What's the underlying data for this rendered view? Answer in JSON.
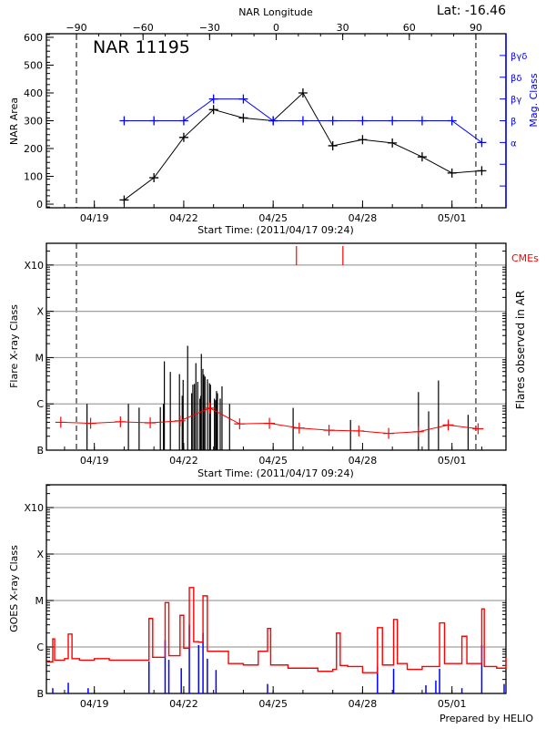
{
  "chart_data": [
    {
      "type": "line",
      "title": "NAR 11195",
      "annotation": "Lat: -16.46",
      "xlabel": "Start Time: (2011/04/17 09:24)",
      "ylabel": "NAR Area",
      "y2label": "Mag. Class",
      "top_axis_label": "NAR Longitude",
      "xlim": [
        "2011-04-17 09:24",
        "2011-05-02 19:30"
      ],
      "ylim": [
        -13,
        613
      ],
      "yticks": [
        0,
        100,
        200,
        300,
        400,
        500,
        600
      ],
      "xtick_labels": [
        "04/19",
        "04/22",
        "04/25",
        "04/28",
        "05/01"
      ],
      "xtick_dates": [
        "2011-04-19 00:00",
        "2011-04-22 00:00",
        "2011-04-25 00:00",
        "2011-04-28 00:00",
        "2011-05-01 00:00"
      ],
      "top_ticks": [
        -90,
        -60,
        -30,
        0,
        30,
        60,
        90
      ],
      "longitude_minus90_date": "2011-04-18 09:36",
      "longitude_plus90_date": "2011-05-01 19:15",
      "mag_class_levels": [
        "α",
        "β",
        "βγ",
        "βδ",
        "βγδ"
      ],
      "mag_class_level_index": [
        3,
        4,
        5,
        6,
        7
      ],
      "mag_axis_range": [
        0,
        8
      ],
      "colors": {
        "area": "#000000",
        "mag": "#0000ff"
      },
      "series": [
        {
          "name": "NAR Area",
          "x": [
            "2011-04-20 00:00",
            "2011-04-21 00:00",
            "2011-04-22 00:00",
            "2011-04-23 00:00",
            "2011-04-24 00:00",
            "2011-04-25 00:00",
            "2011-04-26 00:00",
            "2011-04-27 00:00",
            "2011-04-28 00:00",
            "2011-04-29 00:00",
            "2011-04-30 00:00",
            "2011-05-01 00:00",
            "2011-05-02 00:00"
          ],
          "values": [
            15,
            95,
            240,
            340,
            310,
            300,
            400,
            210,
            232,
            220,
            170,
            112,
            120
          ]
        },
        {
          "name": "Mag. Class",
          "x": [
            "2011-04-20 00:00",
            "2011-04-21 00:00",
            "2011-04-22 00:00",
            "2011-04-23 00:00",
            "2011-04-24 00:00",
            "2011-04-25 00:00",
            "2011-04-26 00:00",
            "2011-04-27 00:00",
            "2011-04-28 00:00",
            "2011-04-29 00:00",
            "2011-04-30 00:00",
            "2011-05-01 00:00",
            "2011-05-02 00:00"
          ],
          "values": [
            "β",
            "β",
            "β",
            "βγ",
            "βγ",
            "β",
            "β",
            "β",
            "β",
            "β",
            "β",
            "β",
            "α"
          ]
        }
      ]
    },
    {
      "type": "bar",
      "xlabel": "Start Time: (2011/04/17 09:24)",
      "ylabel": "Flare X-ray Class",
      "y2label": "Flares observed in AR",
      "cme_label": "CMEs",
      "yscale": "log",
      "ylim": [
        1e-07,
        0.00295
      ],
      "ytick_labels": [
        "B",
        "C",
        "M",
        "X",
        "X10"
      ],
      "ytick_values": [
        1e-07,
        1e-06,
        1e-05,
        0.0001,
        0.001
      ],
      "grid": true,
      "xtick_labels": [
        "04/19",
        "04/22",
        "04/25",
        "04/28",
        "05/01"
      ],
      "colors": {
        "flares": "#000000",
        "trend": "#ff0000",
        "cme": "#ff0000",
        "grid": "#a0a0a0"
      },
      "cme_times": [
        "2011-04-25 18:45",
        "2011-04-27 08:10"
      ],
      "flares": {
        "x": [
          "2011-04-18 18:06",
          "2011-04-20 03:26",
          "2011-04-20 12:03",
          "2011-04-21 05:09",
          "2011-04-21 07:38",
          "2011-04-21 08:22",
          "2011-04-21 13:12",
          "2011-04-21 20:33",
          "2011-04-21 22:45",
          "2011-04-21 23:30",
          "2011-04-22 03:09",
          "2011-04-22 06:23",
          "2011-04-22 07:20",
          "2011-04-22 08:35",
          "2011-04-22 09:46",
          "2011-04-22 11:14",
          "2011-04-22 12:59",
          "2011-04-22 13:44",
          "2011-04-22 14:10",
          "2011-04-22 15:25",
          "2011-04-22 16:09",
          "2011-04-22 17:06",
          "2011-04-22 19:05",
          "2011-04-22 20:46",
          "2011-04-22 21:30",
          "2011-04-23 00:44",
          "2011-04-23 01:41",
          "2011-04-23 02:25",
          "2011-04-23 03:09",
          "2011-04-23 05:21",
          "2011-04-23 06:49",
          "2011-04-23 12:55",
          "2011-04-25 16:05",
          "2011-04-27 14:18",
          "2011-04-29 21:00",
          "2011-04-30 05:13",
          "2011-04-30 13:08",
          "2011-05-01 13:00"
        ],
        "values": [
          1e-06,
          1e-06,
          8.3e-07,
          8.5e-07,
          1e-06,
          8.3e-06,
          4.9e-06,
          4.4e-06,
          1.5e-06,
          3.3e-06,
          1.8e-05,
          1.7e-06,
          2.6e-06,
          2.7e-06,
          7.6e-06,
          3e-06,
          1.3e-06,
          1.5e-06,
          1.2e-05,
          5.7e-06,
          4.3e-06,
          3.9e-06,
          3.4e-06,
          2.8e-06,
          2.6e-06,
          1.3e-06,
          1.2e-06,
          1.9e-06,
          1.7e-06,
          1.3e-06,
          2.4e-06,
          1e-06,
          8.2e-07,
          4.5e-07,
          1.8e-06,
          6.9e-07,
          3.2e-06,
          5.8e-07
        ]
      },
      "trend": {
        "x": [
          "2011-04-17 21:00",
          "2011-04-18 21:00",
          "2011-04-19 21:00",
          "2011-04-20 21:00",
          "2011-04-21 21:00",
          "2011-04-22 21:00",
          "2011-04-23 21:00",
          "2011-04-24 21:00",
          "2011-04-25 21:00",
          "2011-04-26 21:00",
          "2011-04-27 21:00",
          "2011-04-28 21:00",
          "2011-04-29 21:00",
          "2011-04-30 21:00",
          "2011-05-01 21:00"
        ],
        "values": [
          4e-07,
          3.8e-07,
          4.1e-07,
          3.9e-07,
          4.3e-07,
          8.1e-07,
          3.7e-07,
          3.8e-07,
          3e-07,
          2.7e-07,
          2.6e-07,
          2.3e-07,
          2.5e-07,
          3.5e-07,
          2.9e-07
        ]
      }
    },
    {
      "type": "line",
      "ylabel": "GOES X-ray Class",
      "yscale": "log",
      "ylim": [
        1e-07,
        0.00309
      ],
      "ytick_labels": [
        "B",
        "C",
        "M",
        "X",
        "X10"
      ],
      "ytick_values": [
        1e-07,
        1e-06,
        1e-05,
        0.0001,
        0.001
      ],
      "grid": true,
      "xtick_labels": [
        "04/19",
        "04/22",
        "04/25",
        "04/28",
        "05/01"
      ],
      "footer": "Prepared by HELIO",
      "colors": {
        "long": "#ff0000",
        "short": "#0000ff"
      },
      "series": [
        {
          "x": [
            "2011-04-17 09:24",
            "2011-04-17 12:00",
            "2011-04-17 14:30",
            "2011-04-17 16:00",
            "2011-04-18 00:00",
            "2011-04-18 03:00",
            "2011-04-18 06:00",
            "2011-04-18 12:00",
            "2011-04-19 00:00",
            "2011-04-19 12:00",
            "2011-04-20 00:00",
            "2011-04-20 12:00",
            "2011-04-20 20:00",
            "2011-04-20 23:00",
            "2011-04-21 09:00",
            "2011-04-21 12:00",
            "2011-04-21 21:00",
            "2011-04-22 00:00",
            "2011-04-22 04:30",
            "2011-04-22 08:00",
            "2011-04-22 12:00",
            "2011-04-22 15:30",
            "2011-04-22 19:00",
            "2011-04-23 00:00",
            "2011-04-23 12:00",
            "2011-04-24 00:00",
            "2011-04-24 12:00",
            "2011-04-24 19:30",
            "2011-04-24 22:00",
            "2011-04-25 12:00",
            "2011-04-26 00:00",
            "2011-04-26 12:00",
            "2011-04-27 00:00",
            "2011-04-27 03:00",
            "2011-04-27 06:00",
            "2011-04-27 12:00",
            "2011-04-28 00:00",
            "2011-04-28 12:00",
            "2011-04-28 16:00",
            "2011-04-29 01:00",
            "2011-04-29 04:00",
            "2011-04-29 12:00",
            "2011-04-30 00:00",
            "2011-04-30 14:00",
            "2011-04-30 18:00",
            "2011-05-01 00:00",
            "2011-05-01 08:00",
            "2011-05-01 12:00",
            "2011-05-02 00:00",
            "2011-05-02 02:00",
            "2011-05-02 12:00",
            "2011-05-02 19:30"
          ],
          "values": [
            4.8e-07,
            4.8e-07,
            1.5e-06,
            5.2e-07,
            5.6e-07,
            1.9e-06,
            5.6e-07,
            5.2e-07,
            5.6e-07,
            5.2e-07,
            5.2e-07,
            5.2e-07,
            4.1e-06,
            6e-07,
            9e-06,
            6.5e-07,
            4.8e-06,
            9.4e-07,
            1.9e-05,
            1.3e-06,
            1.27e-06,
            1.26e-05,
            8.1e-07,
            8.1e-07,
            4.4e-07,
            4.1e-07,
            8.1e-07,
            2.5e-06,
            4.1e-07,
            3.5e-07,
            3.5e-07,
            3e-07,
            3.3e-07,
            2e-06,
            4e-07,
            3.8e-07,
            2.8e-07,
            2.6e-06,
            4.1e-07,
            3.9e-06,
            4.4e-07,
            3.3e-07,
            3.8e-07,
            3.3e-06,
            4.4e-07,
            4.4e-07,
            1.7e-06,
            4.4e-07,
            6.6e-06,
            3.8e-07,
            3.5e-07,
            6e-07
          ]
        },
        {
          "x": [
            "2011-04-17 14:30",
            "2011-04-18 03:00",
            "2011-04-18 19:00",
            "2011-04-20 20:00",
            "2011-04-21 09:00",
            "2011-04-21 12:00",
            "2011-04-21 22:00",
            "2011-04-22 04:30",
            "2011-04-22 12:00",
            "2011-04-22 15:30",
            "2011-04-22 19:00",
            "2011-04-23 02:00",
            "2011-04-24 19:30",
            "2011-04-28 12:00",
            "2011-04-29 01:00",
            "2011-04-30 03:00",
            "2011-04-30 11:00",
            "2011-04-30 14:00",
            "2011-05-01 08:00",
            "2011-05-02 00:00",
            "2011-05-02 18:00"
          ],
          "values": [
            1.3e-07,
            1.7e-07,
            1.3e-07,
            4.9e-07,
            1.4e-06,
            5.3e-07,
            3.5e-07,
            3e-06,
            1.1e-06,
            2e-06,
            5.6e-07,
            3.2e-07,
            1.6e-07,
            3.8e-07,
            3.4e-07,
            1.5e-07,
            1.9e-07,
            3.4e-07,
            1.3e-07,
            1.1e-06,
            1.6e-07
          ]
        }
      ]
    }
  ]
}
